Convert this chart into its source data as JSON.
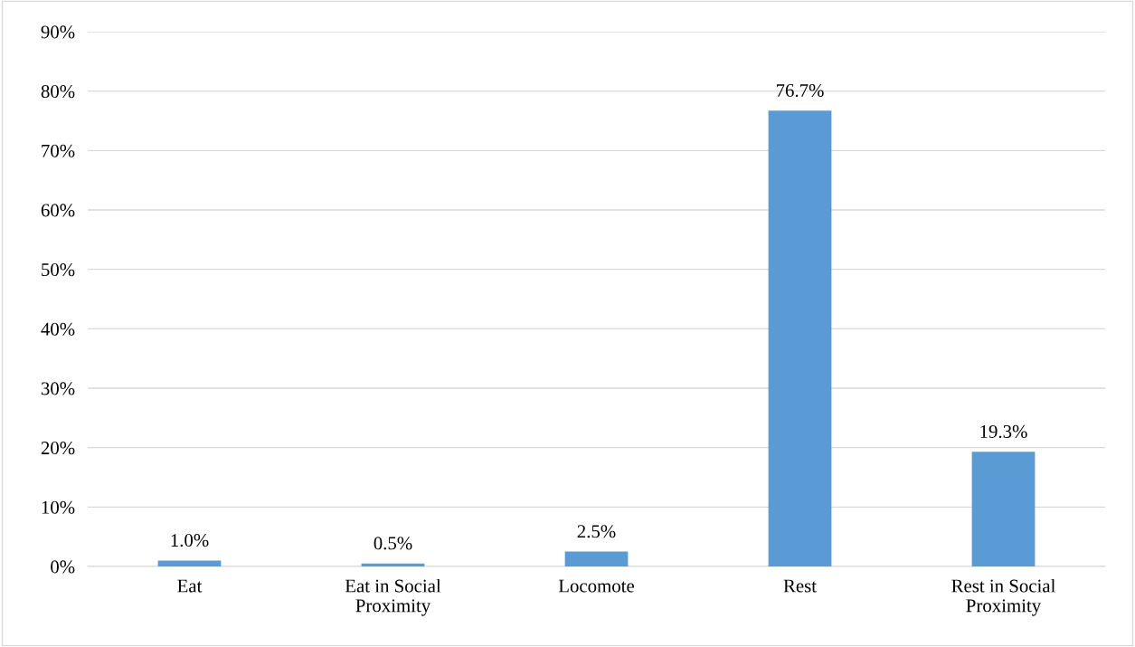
{
  "chart_data": {
    "type": "bar",
    "categories": [
      "Eat",
      "Eat in Social\nProximity",
      "Locomote",
      "Rest",
      "Rest in Social\nProximity"
    ],
    "values": [
      1.0,
      0.5,
      2.5,
      76.7,
      19.3
    ],
    "value_labels": [
      "1.0%",
      "0.5%",
      "2.5%",
      "76.7%",
      "19.3%"
    ],
    "color": "#5b9bd5",
    "ylim": [
      0,
      90
    ],
    "yticks": [
      {
        "value": 0,
        "label": "0%"
      },
      {
        "value": 10,
        "label": "10%"
      },
      {
        "value": 20,
        "label": "20%"
      },
      {
        "value": 30,
        "label": "30%"
      },
      {
        "value": 40,
        "label": "40%"
      },
      {
        "value": 50,
        "label": "50%"
      },
      {
        "value": 60,
        "label": "60%"
      },
      {
        "value": 70,
        "label": "70%"
      },
      {
        "value": 80,
        "label": "80%"
      },
      {
        "value": 90,
        "label": "90%"
      }
    ],
    "grid": "y"
  }
}
